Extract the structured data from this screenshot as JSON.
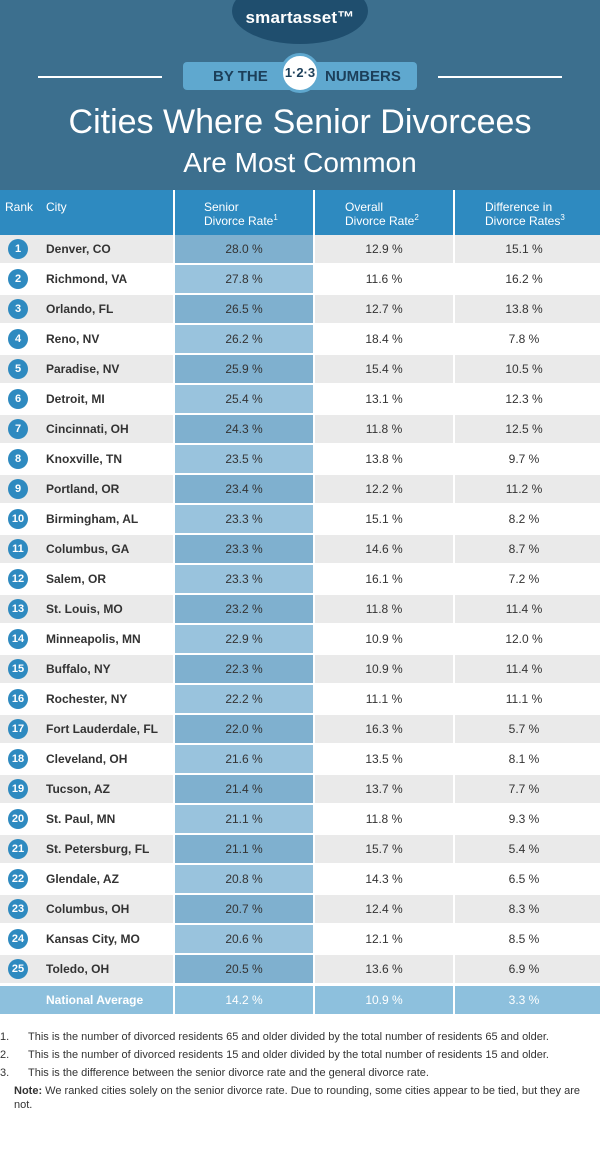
{
  "brand": {
    "logo": "smartasset™",
    "banner_left": "BY THE",
    "banner_badge": "1·2·3",
    "banner_right": "NUMBERS"
  },
  "title": {
    "line1": "Cities Where Senior Divorcees",
    "line2": "Are Most Common"
  },
  "colors": {
    "header_bg": "#3c6f8e",
    "table_header": "#2e8ac0",
    "senior_col_dark": "#7fb0cf",
    "senior_col_light": "#99c3dd",
    "national_row": "#8dc0dd"
  },
  "chart_data": {
    "type": "table",
    "title": "Cities Where Senior Divorcees Are Most Common",
    "columns": [
      "Rank",
      "City",
      "Senior Divorce Rate",
      "Overall Divorce Rate",
      "Difference in Divorce Rates"
    ],
    "column_superscripts": [
      "",
      "",
      "1",
      "2",
      "3"
    ],
    "column_lines": [
      [
        "Rank"
      ],
      [
        "City"
      ],
      [
        "Senior",
        "Divorce Rate"
      ],
      [
        "Overall",
        "Divorce Rate"
      ],
      [
        "Difference in",
        "Divorce Rates"
      ]
    ],
    "rows": [
      {
        "rank": "1",
        "city": "Denver, CO",
        "senior": "28.0 %",
        "overall": "12.9 %",
        "diff": "15.1 %"
      },
      {
        "rank": "2",
        "city": "Richmond, VA",
        "senior": "27.8 %",
        "overall": "11.6 %",
        "diff": "16.2 %"
      },
      {
        "rank": "3",
        "city": "Orlando, FL",
        "senior": "26.5 %",
        "overall": "12.7 %",
        "diff": "13.8 %"
      },
      {
        "rank": "4",
        "city": "Reno, NV",
        "senior": "26.2 %",
        "overall": "18.4 %",
        "diff": "7.8 %"
      },
      {
        "rank": "5",
        "city": "Paradise, NV",
        "senior": "25.9 %",
        "overall": "15.4 %",
        "diff": "10.5 %"
      },
      {
        "rank": "6",
        "city": "Detroit, MI",
        "senior": "25.4 %",
        "overall": "13.1 %",
        "diff": "12.3 %"
      },
      {
        "rank": "7",
        "city": "Cincinnati, OH",
        "senior": "24.3 %",
        "overall": "11.8 %",
        "diff": "12.5 %"
      },
      {
        "rank": "8",
        "city": "Knoxville, TN",
        "senior": "23.5 %",
        "overall": "13.8 %",
        "diff": "9.7 %"
      },
      {
        "rank": "9",
        "city": "Portland, OR",
        "senior": "23.4 %",
        "overall": "12.2 %",
        "diff": "11.2 %"
      },
      {
        "rank": "10",
        "city": "Birmingham, AL",
        "senior": "23.3 %",
        "overall": "15.1 %",
        "diff": "8.2 %"
      },
      {
        "rank": "11",
        "city": "Columbus, GA",
        "senior": "23.3 %",
        "overall": "14.6 %",
        "diff": "8.7 %"
      },
      {
        "rank": "12",
        "city": "Salem, OR",
        "senior": "23.3 %",
        "overall": "16.1 %",
        "diff": "7.2 %"
      },
      {
        "rank": "13",
        "city": "St. Louis, MO",
        "senior": "23.2 %",
        "overall": "11.8 %",
        "diff": "11.4 %"
      },
      {
        "rank": "14",
        "city": "Minneapolis, MN",
        "senior": "22.9 %",
        "overall": "10.9 %",
        "diff": "12.0 %"
      },
      {
        "rank": "15",
        "city": "Buffalo, NY",
        "senior": "22.3 %",
        "overall": "10.9 %",
        "diff": "11.4 %"
      },
      {
        "rank": "16",
        "city": "Rochester, NY",
        "senior": "22.2 %",
        "overall": "11.1 %",
        "diff": "11.1 %"
      },
      {
        "rank": "17",
        "city": "Fort Lauderdale, FL",
        "senior": "22.0 %",
        "overall": "16.3 %",
        "diff": "5.7 %"
      },
      {
        "rank": "18",
        "city": "Cleveland, OH",
        "senior": "21.6 %",
        "overall": "13.5 %",
        "diff": "8.1 %"
      },
      {
        "rank": "19",
        "city": "Tucson, AZ",
        "senior": "21.4 %",
        "overall": "13.7 %",
        "diff": "7.7 %"
      },
      {
        "rank": "20",
        "city": "St. Paul, MN",
        "senior": "21.1 %",
        "overall": "11.8 %",
        "diff": "9.3 %"
      },
      {
        "rank": "21",
        "city": "St. Petersburg, FL",
        "senior": "21.1 %",
        "overall": "15.7 %",
        "diff": "5.4 %"
      },
      {
        "rank": "22",
        "city": "Glendale, AZ",
        "senior": "20.8 %",
        "overall": "14.3 %",
        "diff": "6.5 %"
      },
      {
        "rank": "23",
        "city": "Columbus, OH",
        "senior": "20.7 %",
        "overall": "12.4 %",
        "diff": "8.3 %"
      },
      {
        "rank": "24",
        "city": "Kansas City, MO",
        "senior": "20.6 %",
        "overall": "12.1 %",
        "diff": "8.5 %"
      },
      {
        "rank": "25",
        "city": "Toledo, OH",
        "senior": "20.5 %",
        "overall": "13.6 %",
        "diff": "6.9 %"
      }
    ],
    "national_average": {
      "label": "National Average",
      "senior": "14.2 %",
      "overall": "10.9 %",
      "diff": "3.3 %"
    }
  },
  "footnotes": [
    {
      "num": "1.",
      "text": "This is the number of divorced residents 65 and older divided by the total number of residents 65 and older."
    },
    {
      "num": "2.",
      "text": "This is the number of divorced residents 15 and older divided by the total number of residents 15 and older."
    },
    {
      "num": "3.",
      "text": "This is the difference between the senior divorce rate and the general divorce rate."
    }
  ],
  "note": {
    "label": "Note:",
    "text": "We ranked cities solely on the senior divorce rate. Due to rounding, some cities appear to be tied, but they are not."
  }
}
